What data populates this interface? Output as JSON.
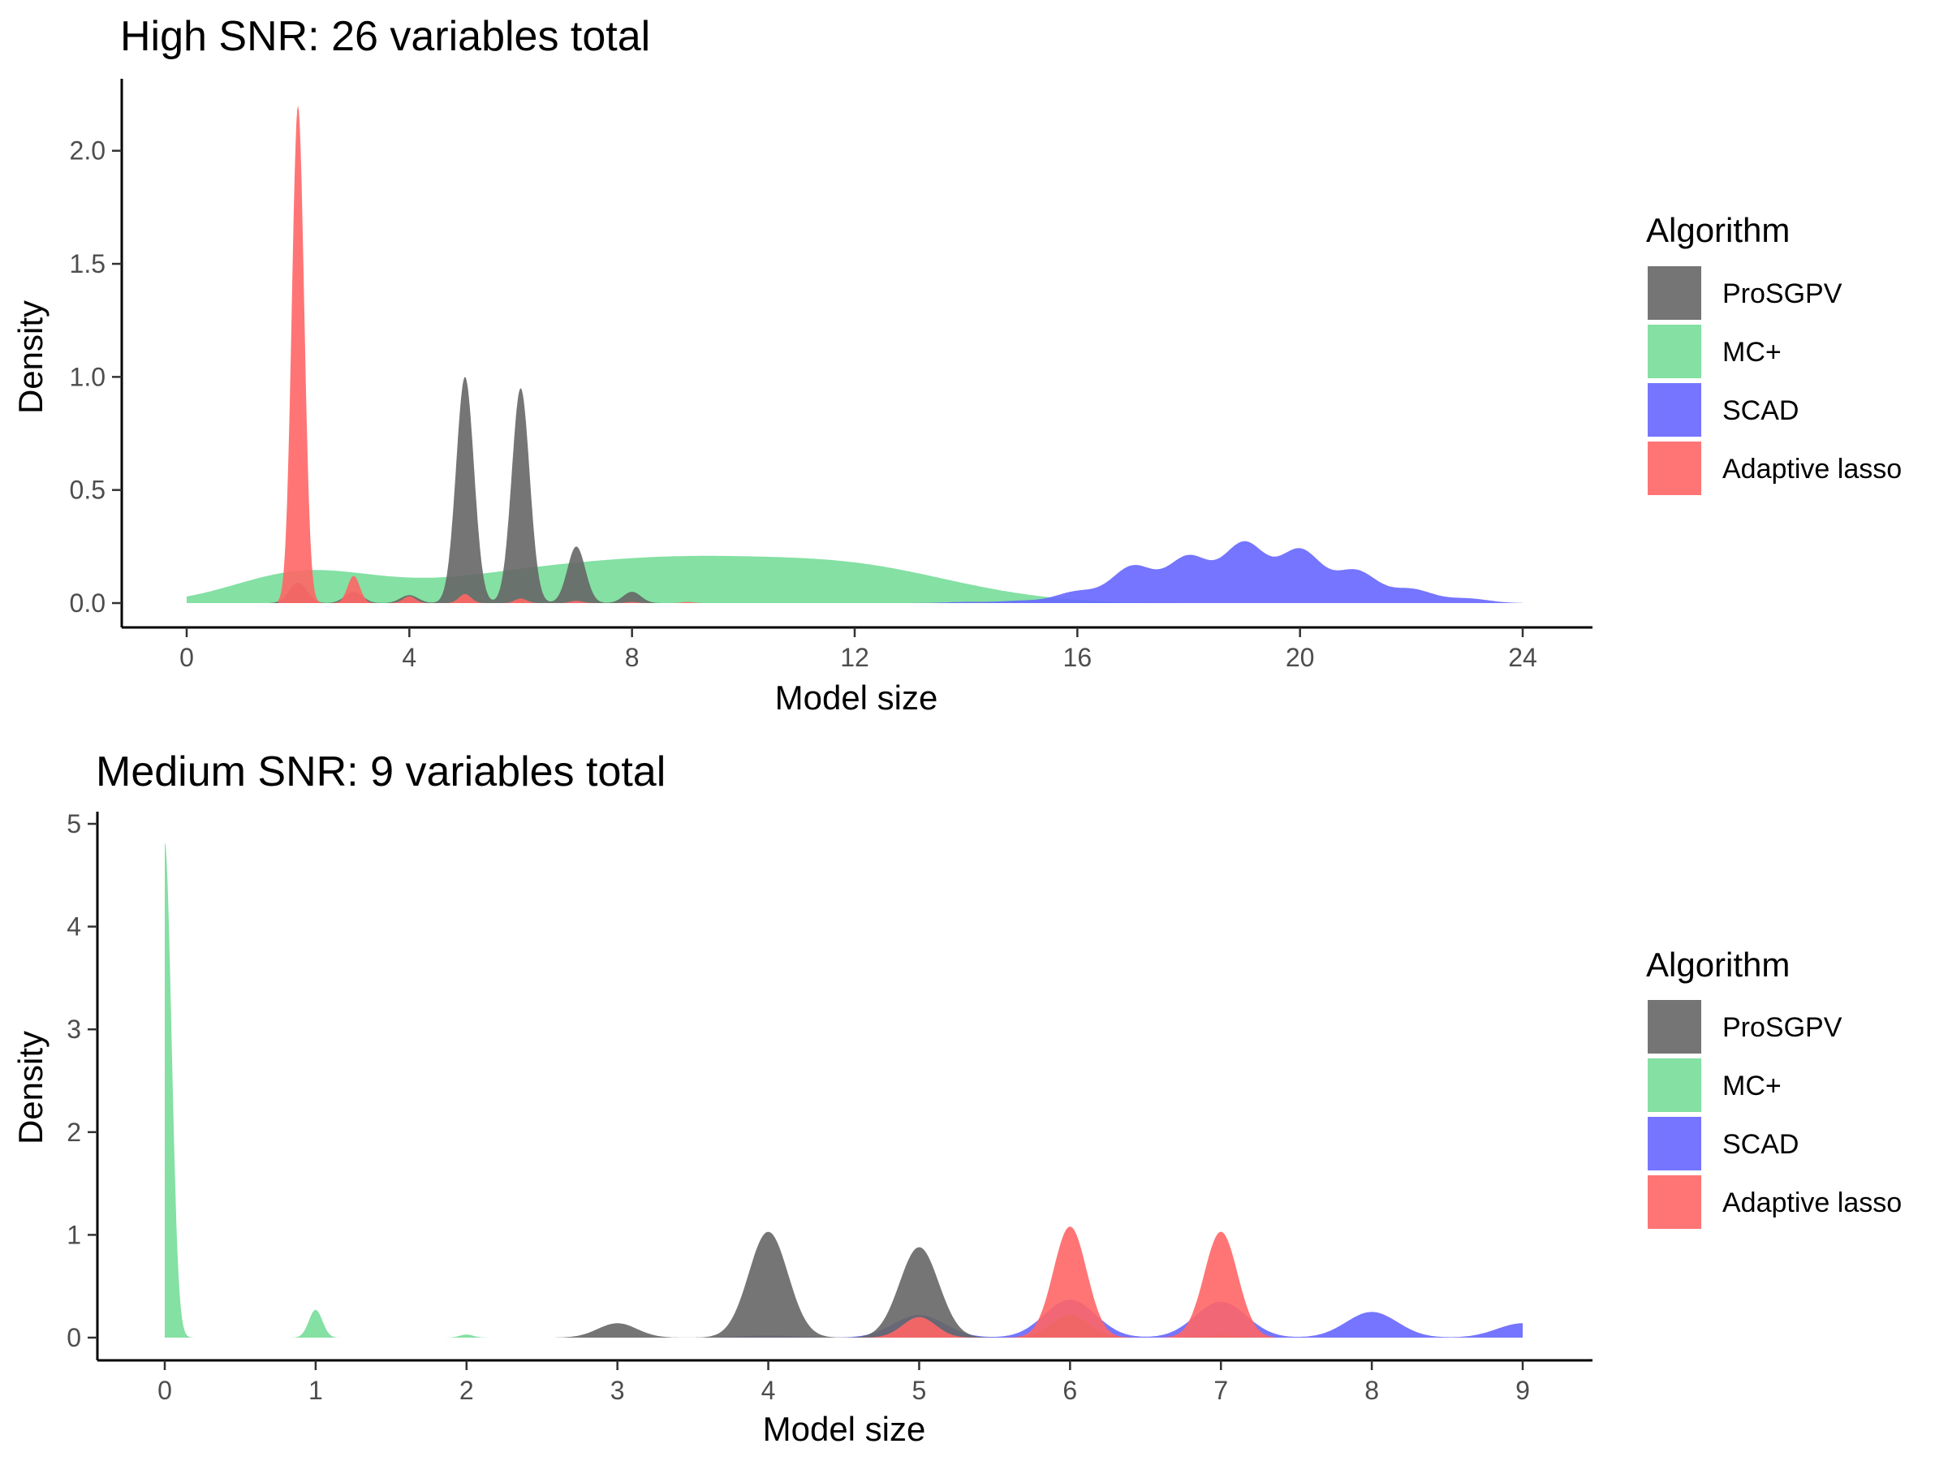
{
  "chart_data": [
    {
      "type": "area",
      "title": "High SNR: 26 variables total",
      "xlabel": "Model size",
      "ylabel": "Density",
      "xlim": [
        0,
        24
      ],
      "ylim": [
        0,
        2.2
      ],
      "xticks": [
        "0",
        "4",
        "8",
        "12",
        "16",
        "20",
        "24"
      ],
      "yticks": [
        "0.0",
        "0.5",
        "1.0",
        "1.5",
        "2.0"
      ],
      "grid": false,
      "legend": {
        "title": "Algorithm",
        "position": "right"
      },
      "series": [
        {
          "name": "ProSGPV",
          "color": "#666666",
          "x": [
            2,
            3,
            4,
            5,
            6,
            7,
            8
          ],
          "y": [
            0.09,
            0.05,
            0.035,
            1.0,
            0.95,
            0.25,
            0.05
          ]
        },
        {
          "name": "MC+",
          "color": "#77dd99",
          "x": [
            0,
            1,
            2,
            3,
            4,
            5,
            6,
            7,
            8,
            9,
            10,
            11,
            12,
            13,
            14,
            15,
            16
          ],
          "y": [
            0.0,
            0.04,
            0.085,
            0.06,
            0.04,
            0.05,
            0.07,
            0.08,
            0.09,
            0.095,
            0.092,
            0.09,
            0.085,
            0.065,
            0.035,
            0.015,
            0.003
          ]
        },
        {
          "name": "SCAD",
          "color": "#6666ff",
          "x": [
            14,
            15,
            16,
            17,
            18,
            19,
            20,
            21,
            22,
            23,
            24
          ],
          "y": [
            0.005,
            0.01,
            0.05,
            0.16,
            0.2,
            0.26,
            0.23,
            0.14,
            0.06,
            0.02,
            0.0
          ]
        },
        {
          "name": "Adaptive lasso",
          "color": "#ff6666",
          "x": [
            2,
            3,
            4,
            5,
            6,
            7,
            8,
            9
          ],
          "y": [
            2.2,
            0.12,
            0.03,
            0.04,
            0.02,
            0.01,
            0.005,
            0.005
          ]
        }
      ]
    },
    {
      "type": "area",
      "title": "Medium SNR: 9 variables total",
      "xlabel": "Model size",
      "ylabel": "Density",
      "xlim": [
        0,
        9
      ],
      "ylim": [
        0,
        5
      ],
      "xticks": [
        "0",
        "1",
        "2",
        "3",
        "4",
        "5",
        "6",
        "7",
        "8",
        "9"
      ],
      "yticks": [
        "0",
        "1",
        "2",
        "3",
        "4",
        "5"
      ],
      "grid": false,
      "legend": {
        "title": "Algorithm",
        "position": "right"
      },
      "series": [
        {
          "name": "ProSGPV",
          "color": "#666666",
          "x": [
            3,
            4,
            5,
            6,
            7
          ],
          "y": [
            0.14,
            1.03,
            0.88,
            0.22,
            0.02
          ]
        },
        {
          "name": "MC+",
          "color": "#77dd99",
          "x": [
            0,
            1,
            2
          ],
          "y": [
            4.82,
            0.27,
            0.03
          ]
        },
        {
          "name": "SCAD",
          "color": "#6666ff",
          "x": [
            4,
            5,
            6,
            7,
            8,
            9
          ],
          "y": [
            0.02,
            0.22,
            0.37,
            0.35,
            0.25,
            0.14
          ]
        },
        {
          "name": "Adaptive lasso",
          "color": "#ff6666",
          "x": [
            5,
            6,
            7
          ],
          "y": [
            0.2,
            1.08,
            1.03
          ]
        }
      ]
    }
  ]
}
